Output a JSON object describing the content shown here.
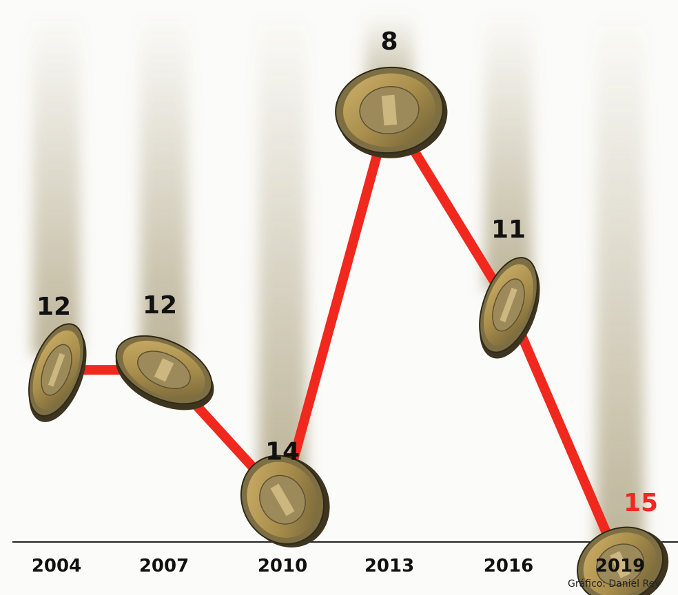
{
  "chart_data": {
    "type": "line",
    "categories": [
      "2004",
      "2007",
      "2010",
      "2013",
      "2016",
      "2019"
    ],
    "values": [
      12,
      12,
      14,
      8,
      11,
      15
    ],
    "y_axis_inverted": true,
    "marker": "coin-icon",
    "series": [
      {
        "values": [
          12,
          12,
          14,
          8,
          11,
          15
        ]
      }
    ],
    "highlight_last_label": true,
    "grid": false,
    "title": "",
    "xlabel": "",
    "ylabel": ""
  },
  "colors": {
    "line": "#f0281e",
    "highlight_label": "#f0281e",
    "label": "#111111",
    "coin_rim": "#7d6f43",
    "coin_face": "#b79b52",
    "coin_center": "#9c8a5a",
    "background": "#fbfbf9"
  },
  "credit": "Gráfico: Daniel Rey"
}
